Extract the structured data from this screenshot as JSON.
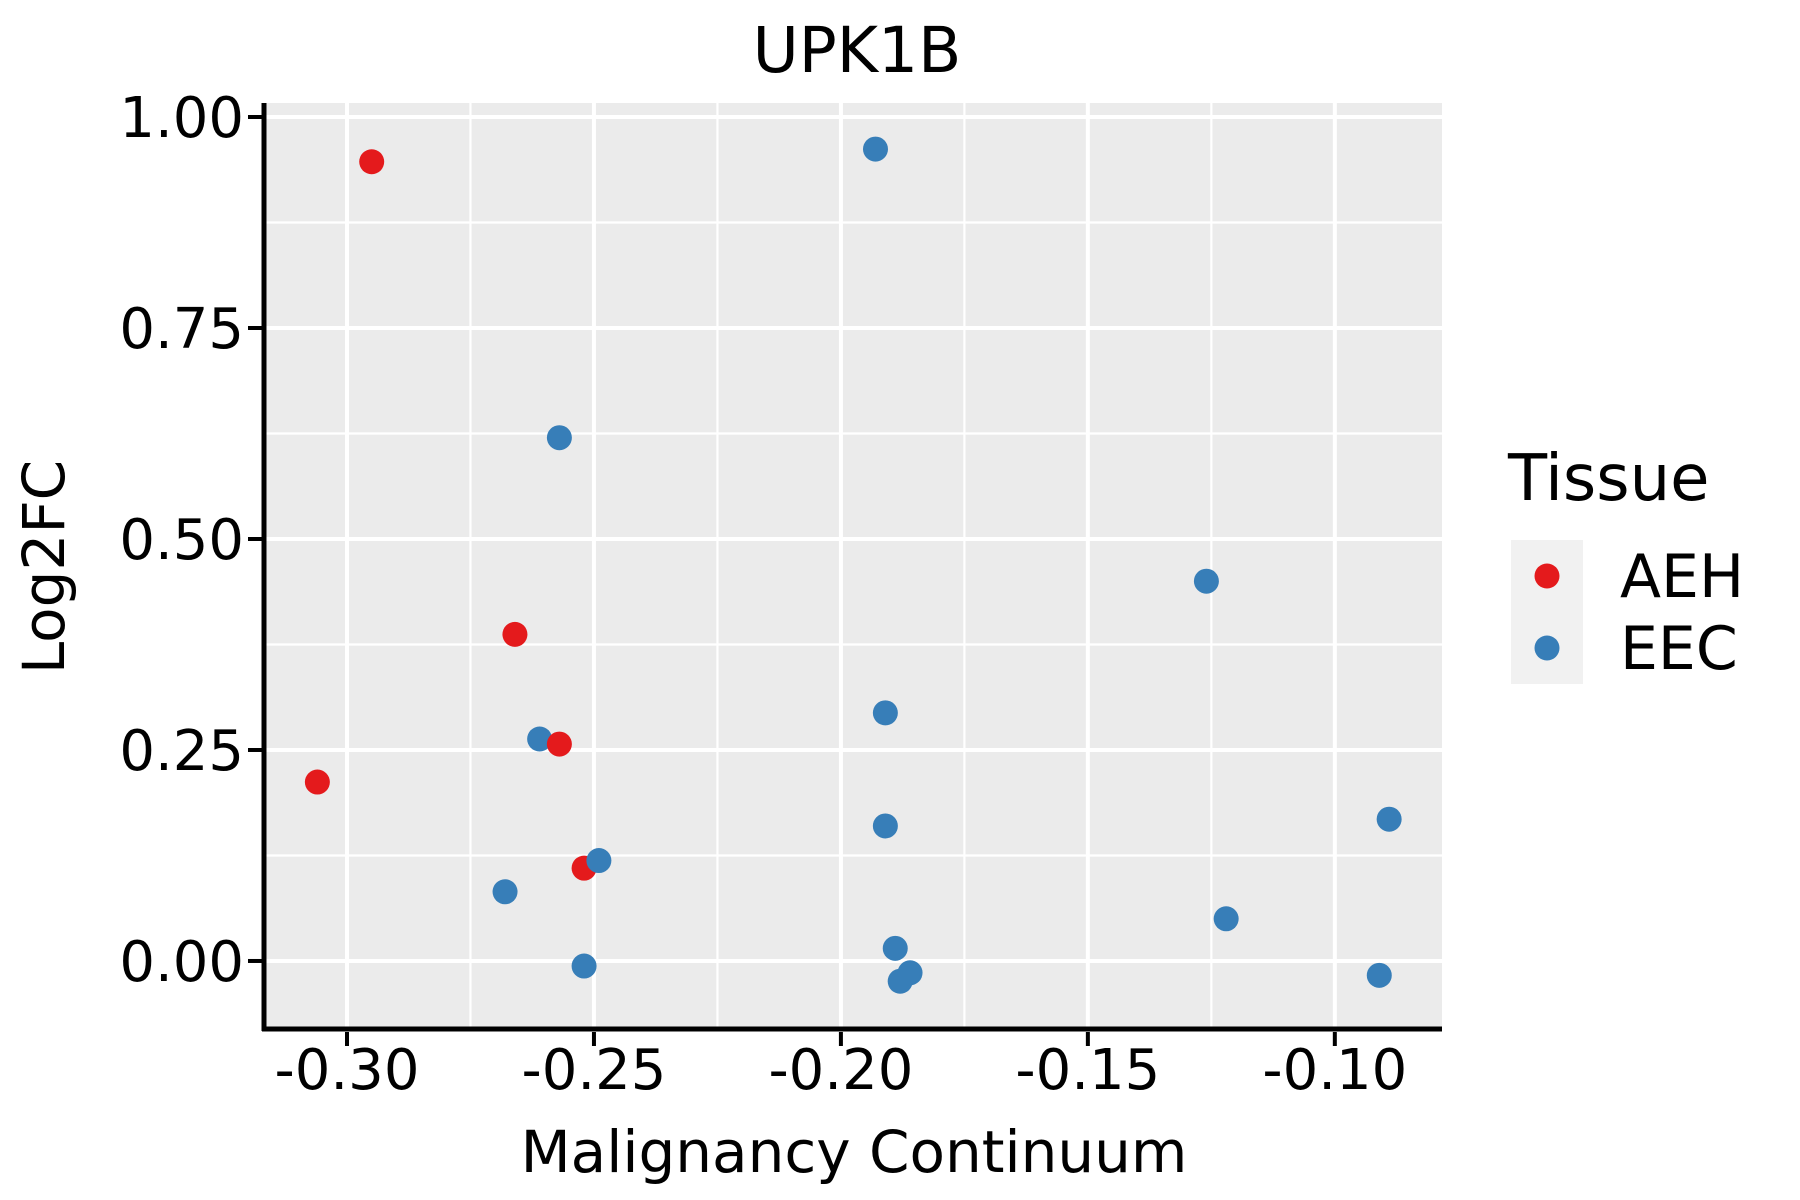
{
  "chart_data": {
    "type": "scatter",
    "title": "UPK1B",
    "xlabel": "Malignancy Continuum",
    "ylabel": "Log2FC",
    "xlim": [
      -0.3164,
      -0.0783
    ],
    "ylim": [
      -0.0806,
      1.0166
    ],
    "x_ticks": [
      -0.3,
      -0.25,
      -0.2,
      -0.15,
      -0.1
    ],
    "x_tick_labels": [
      "-0.30",
      "-0.25",
      "-0.20",
      "-0.15",
      "-0.10"
    ],
    "y_ticks": [
      0.0,
      0.25,
      0.5,
      0.75,
      1.0
    ],
    "y_tick_labels": [
      "0.00",
      "0.25",
      "0.50",
      "0.75",
      "1.00"
    ],
    "grid": true,
    "panel_bg": "#EBEBEB",
    "grid_color": "#FFFFFF",
    "colors": {
      "AEH": "#E41A1C",
      "EEC": "#377EB8"
    },
    "marker_radius": 12.5,
    "legend": {
      "title": "Tissue",
      "position": "right",
      "key_bg": "#F1F1F1",
      "entries": [
        {
          "label": "AEH",
          "color": "#E41A1C"
        },
        {
          "label": "EEC",
          "color": "#377EB8"
        }
      ]
    },
    "series": [
      {
        "name": "AEH",
        "count": 5
      },
      {
        "name": "EEC",
        "count": 15
      }
    ],
    "points": [
      {
        "x": -0.295,
        "y": 0.947,
        "tissue": "AEH"
      },
      {
        "x": -0.266,
        "y": 0.387,
        "tissue": "AEH"
      },
      {
        "x": -0.306,
        "y": 0.212,
        "tissue": "AEH"
      },
      {
        "x": -0.261,
        "y": 0.263,
        "tissue": "EEC"
      },
      {
        "x": -0.257,
        "y": 0.257,
        "tissue": "AEH"
      },
      {
        "x": -0.252,
        "y": 0.11,
        "tissue": "AEH"
      },
      {
        "x": -0.249,
        "y": 0.119,
        "tissue": "EEC"
      },
      {
        "x": -0.193,
        "y": 0.962,
        "tissue": "EEC"
      },
      {
        "x": -0.257,
        "y": 0.62,
        "tissue": "EEC"
      },
      {
        "x": -0.268,
        "y": 0.082,
        "tissue": "EEC"
      },
      {
        "x": -0.252,
        "y": -0.006,
        "tissue": "EEC"
      },
      {
        "x": -0.191,
        "y": 0.294,
        "tissue": "EEC"
      },
      {
        "x": -0.191,
        "y": 0.16,
        "tissue": "EEC"
      },
      {
        "x": -0.189,
        "y": 0.015,
        "tissue": "EEC"
      },
      {
        "x": -0.188,
        "y": -0.024,
        "tissue": "EEC"
      },
      {
        "x": -0.186,
        "y": -0.014,
        "tissue": "EEC"
      },
      {
        "x": -0.126,
        "y": 0.45,
        "tissue": "EEC"
      },
      {
        "x": -0.122,
        "y": 0.05,
        "tissue": "EEC"
      },
      {
        "x": -0.089,
        "y": 0.168,
        "tissue": "EEC"
      },
      {
        "x": -0.091,
        "y": -0.017,
        "tissue": "EEC"
      }
    ]
  }
}
